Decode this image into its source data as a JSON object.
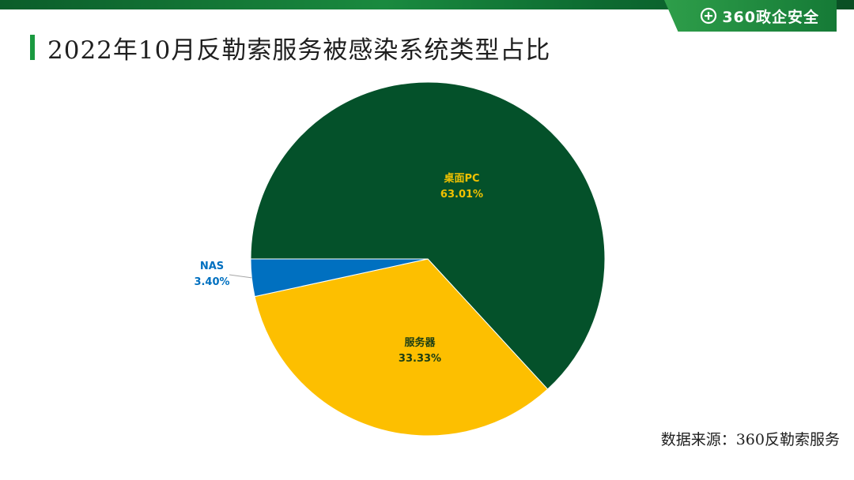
{
  "header": {
    "brand_text": "360政企安全"
  },
  "title": "2022年10月反勒索服务被感染系统类型占比",
  "footer": {
    "source_text": "数据来源：360反勒索服务"
  },
  "chart_data": {
    "type": "pie",
    "slices": [
      {
        "name": "桌面PC",
        "value": 63.01,
        "label": "63.01%",
        "color": "#04512a",
        "label_color": "#f2c200"
      },
      {
        "name": "服务器",
        "value": 33.33,
        "label": "33.33%",
        "color": "#fdbf00",
        "label_color": "#1a3d14"
      },
      {
        "name": "NAS",
        "value": 3.4,
        "label": "3.40%",
        "color": "#0070c0",
        "label_color": "#0070c0"
      }
    ]
  }
}
